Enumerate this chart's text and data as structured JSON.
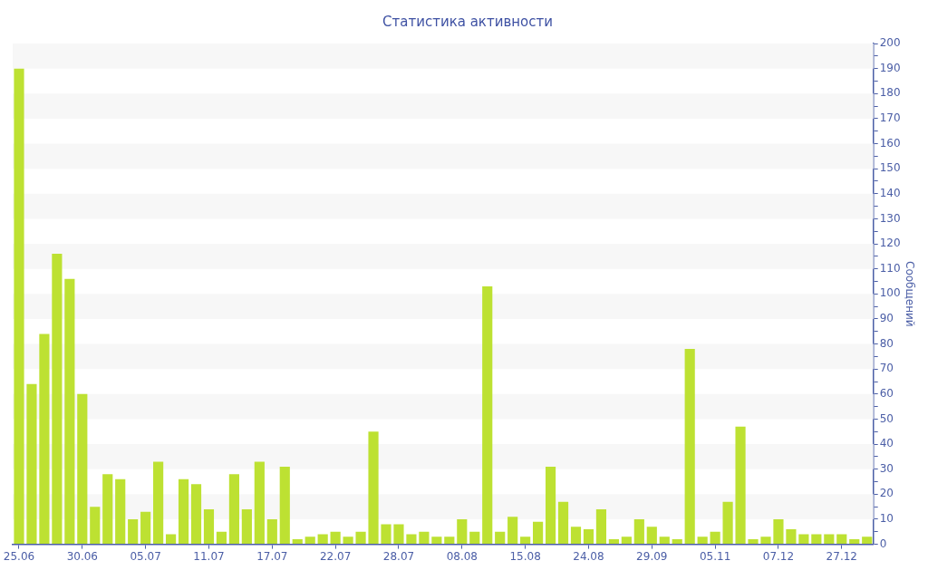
{
  "chart_data": {
    "type": "bar",
    "title": "Статистика активности",
    "ylabel": "Сообщений",
    "categories": [
      "25.06",
      null,
      null,
      null,
      null,
      "30.06",
      null,
      null,
      null,
      null,
      "05.07",
      null,
      null,
      null,
      null,
      "11.07",
      null,
      null,
      null,
      null,
      "17.07",
      null,
      null,
      null,
      null,
      "22.07",
      null,
      null,
      null,
      null,
      "28.07",
      null,
      null,
      null,
      null,
      "08.08",
      null,
      null,
      null,
      null,
      "15.08",
      null,
      null,
      null,
      null,
      "24.08",
      null,
      null,
      null,
      null,
      "29.09",
      null,
      null,
      null,
      null,
      "05.11",
      null,
      null,
      null,
      null,
      "07.12",
      null,
      null,
      null,
      null,
      "27.12",
      null,
      null
    ],
    "values": [
      190,
      64,
      84,
      116,
      106,
      60,
      15,
      28,
      26,
      10,
      13,
      33,
      4,
      26,
      24,
      14,
      5,
      28,
      14,
      33,
      10,
      31,
      2,
      3,
      4,
      5,
      3,
      5,
      45,
      8,
      8,
      4,
      5,
      3,
      3,
      10,
      5,
      103,
      5,
      11,
      3,
      9,
      31,
      17,
      7,
      6,
      14,
      2,
      3,
      10,
      7,
      3,
      2,
      78,
      3,
      5,
      17,
      47,
      2,
      3,
      10,
      6,
      4,
      4,
      4,
      4,
      2,
      3
    ],
    "color": "#bde132",
    "ylim": [
      0,
      200
    ],
    "yticks": [
      0,
      {
        "value": 5,
        "label": null
      },
      10,
      {
        "value": 15,
        "label": null
      },
      20,
      {
        "value": 25,
        "label": null
      },
      30,
      {
        "value": 35,
        "label": null
      },
      40,
      {
        "value": 45,
        "label": null
      },
      50,
      {
        "value": 55,
        "label": null
      },
      60,
      {
        "value": 65,
        "label": null
      },
      70,
      {
        "value": 75,
        "label": null
      },
      80,
      {
        "value": 85,
        "label": null
      },
      90,
      {
        "value": 95,
        "label": null
      },
      100,
      {
        "value": 105,
        "label": null
      },
      110,
      {
        "value": 115,
        "label": null
      },
      120,
      {
        "value": 125,
        "label": null
      },
      130,
      {
        "value": 135,
        "label": null
      },
      140,
      {
        "value": 145,
        "label": null
      },
      150,
      {
        "value": 155,
        "label": null
      },
      160,
      {
        "value": 165,
        "label": null
      },
      170,
      {
        "value": 175,
        "label": null
      },
      180,
      {
        "value": 185,
        "label": null
      },
      190,
      {
        "value": 195,
        "label": null
      },
      200
    ],
    "bands": [
      {
        "axis": "y",
        "from": 10,
        "to": 20,
        "color": "#f7f7f7"
      },
      {
        "axis": "y",
        "from": 30,
        "to": 40,
        "color": "#f7f7f7"
      },
      {
        "axis": "y",
        "from": 50,
        "to": 60,
        "color": "#f7f7f7"
      },
      {
        "axis": "y",
        "from": 70,
        "to": 80,
        "color": "#f7f7f7"
      },
      {
        "axis": "y",
        "from": 90,
        "to": 100,
        "color": "#f7f7f7"
      },
      {
        "axis": "y",
        "from": 110,
        "to": 120,
        "color": "#f7f7f7"
      },
      {
        "axis": "y",
        "from": 130,
        "to": 140,
        "color": "#f7f7f7"
      },
      {
        "axis": "y",
        "from": 150,
        "to": 160,
        "color": "#f7f7f7"
      },
      {
        "axis": "y",
        "from": 170,
        "to": 180,
        "color": "#f7f7f7"
      },
      {
        "axis": "y",
        "from": 190,
        "to": 200,
        "color": "#f7f7f7"
      }
    ]
  }
}
